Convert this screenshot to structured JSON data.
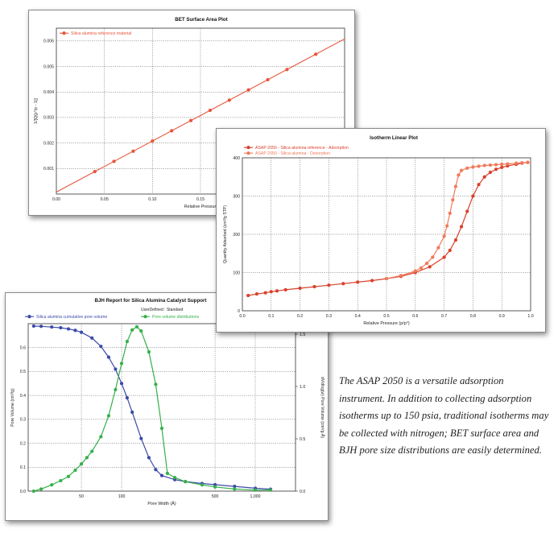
{
  "chart_data": [
    {
      "id": "bet",
      "type": "line",
      "title": "BET Surface Area Plot",
      "xlabel": "Relative Pressure",
      "ylabel": "1/[Q(p°/p - 1)]",
      "xlim": [
        0.0,
        0.3
      ],
      "ylim": [
        0.0,
        0.0065
      ],
      "xticks": [
        0.0,
        0.05,
        0.1,
        0.15
      ],
      "xtick_labels": [
        "0.00",
        "0.05",
        "0.10",
        "0.15"
      ],
      "yticks": [
        0.001,
        0.002,
        0.003,
        0.004,
        0.005,
        0.006
      ],
      "ytick_labels": [
        "0.001",
        "0.002",
        "0.003",
        "0.004",
        "0.005",
        "0.006"
      ],
      "grid": true,
      "legend_position": "top-left",
      "series": [
        {
          "name": "Silica alumina reference material",
          "color": "#e8553b",
          "x": [
            0.04,
            0.06,
            0.08,
            0.1,
            0.12,
            0.14,
            0.16,
            0.18,
            0.2,
            0.22,
            0.24,
            0.27
          ],
          "y": [
            0.00088,
            0.00128,
            0.00168,
            0.00208,
            0.00248,
            0.00288,
            0.00328,
            0.00368,
            0.00408,
            0.00448,
            0.00488,
            0.00548
          ]
        }
      ]
    },
    {
      "id": "isotherm",
      "type": "line",
      "title": "Isotherm Linear Plot",
      "xlabel": "Relative Pressure (p/p°)",
      "ylabel": "Quantity Adsorbed (cm³/g STP)",
      "xlim": [
        0.0,
        1.0
      ],
      "ylim": [
        0,
        400
      ],
      "xticks": [
        0.0,
        0.1,
        0.2,
        0.3,
        0.4,
        0.5,
        0.6,
        0.7,
        0.8,
        0.9,
        1.0
      ],
      "xtick_labels": [
        "0.0",
        "0.1",
        "0.2",
        "0.3",
        "0.4",
        "0.5",
        "0.6",
        "0.7",
        "0.8",
        "0.9",
        "1.0"
      ],
      "yticks": [
        0,
        100,
        200,
        300,
        400
      ],
      "ytick_labels": [
        "0",
        "100",
        "200",
        "300",
        "400"
      ],
      "grid": true,
      "legend_position": "top-left",
      "series": [
        {
          "name": "ASAP 2050 - Silica alumina reference - Adsorption",
          "color": "#d9412b",
          "x": [
            0.02,
            0.05,
            0.08,
            0.1,
            0.12,
            0.15,
            0.2,
            0.25,
            0.3,
            0.35,
            0.4,
            0.45,
            0.5,
            0.55,
            0.6,
            0.65,
            0.7,
            0.72,
            0.74,
            0.76,
            0.78,
            0.8,
            0.82,
            0.84,
            0.86,
            0.88,
            0.9,
            0.92,
            0.95,
            0.97,
            0.99
          ],
          "y": [
            40,
            44,
            47,
            50,
            52,
            55,
            59,
            63,
            67,
            71,
            75,
            79,
            84,
            90,
            100,
            115,
            140,
            158,
            185,
            220,
            260,
            300,
            330,
            350,
            362,
            370,
            375,
            379,
            383,
            386,
            388
          ]
        },
        {
          "name": "ASAP 2050 - Silica alumina - Desorption",
          "color": "#f07a5a",
          "x": [
            0.99,
            0.97,
            0.95,
            0.92,
            0.9,
            0.88,
            0.86,
            0.84,
            0.82,
            0.8,
            0.78,
            0.76,
            0.75,
            0.74,
            0.73,
            0.72,
            0.71,
            0.7,
            0.68,
            0.66,
            0.64,
            0.62,
            0.6,
            0.55,
            0.5
          ],
          "y": [
            388,
            387,
            386,
            384,
            383,
            382,
            381,
            380,
            378,
            376,
            373,
            367,
            355,
            325,
            290,
            255,
            222,
            195,
            165,
            140,
            124,
            112,
            104,
            92,
            84
          ]
        }
      ]
    },
    {
      "id": "bjh",
      "type": "line",
      "title": "BJH Report for Silica Alumina Catalyst Support",
      "subtitle": "UserDefined : Standard",
      "xlabel": "Pore Width (Å)",
      "ylabel": "Pore Volume (cm³/g)",
      "y2label": "dV/dlog(w) Pore Volume (cm³/g·Å)",
      "x_scale": "log",
      "xlim": [
        20,
        2000
      ],
      "ylim": [
        0.0,
        0.7
      ],
      "y2lim": [
        0.0,
        1.6
      ],
      "xticks": [
        50,
        100,
        500,
        1000
      ],
      "xtick_labels": [
        "50",
        "100",
        "500",
        "1,000"
      ],
      "yticks": [
        0.0,
        0.1,
        0.2,
        0.3,
        0.4,
        0.5,
        0.6
      ],
      "ytick_labels": [
        "0.0",
        "0.1",
        "0.2",
        "0.3",
        "0.4",
        "0.5",
        "0.6"
      ],
      "y2ticks": [
        0.0,
        0.5,
        1.0,
        1.5
      ],
      "y2tick_labels": [
        "0.0",
        "0.5",
        "1.0",
        "1.5"
      ],
      "grid": true,
      "legend_position": "top",
      "series": [
        {
          "name": "Silica alumina cumulative pore volume",
          "axis": "left",
          "color": "#3b4aa8",
          "x": [
            22,
            25,
            30,
            35,
            40,
            45,
            50,
            60,
            70,
            80,
            90,
            100,
            110,
            120,
            140,
            160,
            180,
            200,
            250,
            300,
            400,
            500,
            700,
            1000,
            1300
          ],
          "y": [
            0.69,
            0.689,
            0.686,
            0.683,
            0.678,
            0.672,
            0.664,
            0.64,
            0.605,
            0.56,
            0.51,
            0.45,
            0.39,
            0.33,
            0.22,
            0.14,
            0.09,
            0.065,
            0.048,
            0.04,
            0.032,
            0.027,
            0.02,
            0.012,
            0.008
          ]
        },
        {
          "name": "Pore volume distributions",
          "axis": "right",
          "color": "#35b04a",
          "x": [
            22,
            25,
            30,
            35,
            40,
            45,
            50,
            55,
            60,
            70,
            80,
            90,
            100,
            110,
            120,
            130,
            140,
            160,
            180,
            200,
            220,
            250,
            300,
            400,
            500,
            700,
            1000,
            1300
          ],
          "y": [
            0.0,
            0.02,
            0.06,
            0.1,
            0.14,
            0.2,
            0.26,
            0.32,
            0.38,
            0.52,
            0.72,
            0.97,
            1.22,
            1.43,
            1.54,
            1.57,
            1.53,
            1.33,
            1.02,
            0.6,
            0.17,
            0.13,
            0.09,
            0.06,
            0.04,
            0.02,
            0.01,
            0.01
          ]
        }
      ]
    }
  ],
  "caption": {
    "text": "The ASAP 2050 is a versatile adsorption instrument. In addition to collecting adsorption isotherms up to 150 psia, traditional isotherms may be collected with nitrogen; BET surface area and BJH pore size distributions are easily determined."
  }
}
